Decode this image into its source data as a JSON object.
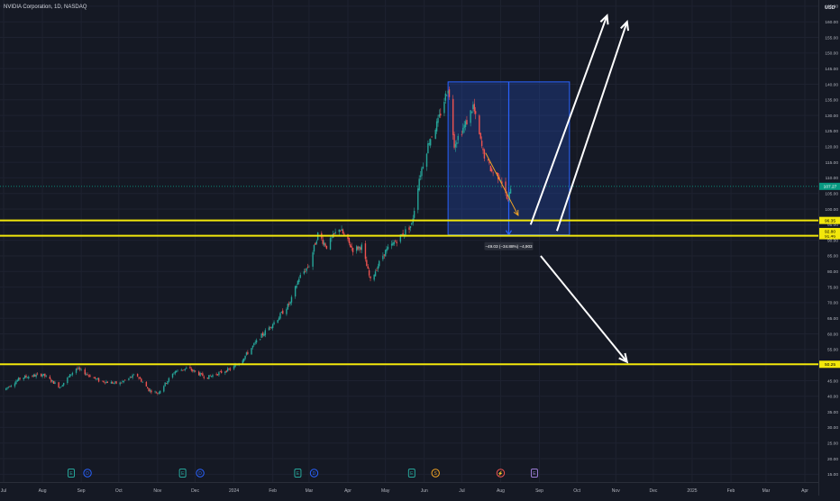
{
  "header": {
    "symbol_title": "NVIDIA Corporation, 1D, NASDAQ",
    "currency": "USD"
  },
  "colors": {
    "background": "#151924",
    "grid": "#1e2230",
    "up": "#26a69a",
    "down": "#ef5350",
    "level_line": "#f2e70b",
    "measure_box": "#2962ff",
    "arrow": "#ffffff",
    "orange_arrow": "#f5a623",
    "current_price_bg": "#089981"
  },
  "chart_data": {
    "type": "candlestick",
    "x_tick_labels": [
      "Jul",
      "Aug",
      "Sep",
      "Oct",
      "Nov",
      "Dec",
      "2024",
      "Feb",
      "Mar",
      "Apr",
      "May",
      "Jun",
      "Jul",
      "Aug",
      "Sep",
      "Oct",
      "Nov",
      "Dec",
      "2025",
      "Feb",
      "Mar",
      "Apr"
    ],
    "y_tick_labels": [
      "165.00",
      "160.00",
      "155.00",
      "150.00",
      "145.00",
      "140.00",
      "135.00",
      "130.00",
      "125.00",
      "120.00",
      "115.00",
      "110.00",
      "105.00",
      "100.00",
      "95.00",
      "90.00",
      "85.00",
      "80.00",
      "75.00",
      "70.00",
      "65.00",
      "60.00",
      "55.00",
      "50.00",
      "45.00",
      "40.00",
      "35.00",
      "30.00",
      "25.00",
      "20.00",
      "15.00"
    ],
    "y_tick_values": [
      165,
      160,
      155,
      150,
      145,
      140,
      135,
      130,
      125,
      120,
      115,
      110,
      105,
      100,
      95,
      90,
      85,
      80,
      75,
      70,
      65,
      60,
      55,
      50,
      45,
      40,
      35,
      30,
      25,
      20,
      15
    ],
    "ylim": [
      12.5,
      167
    ],
    "price_path": [
      {
        "date": "2023-07-01",
        "price": 42
      },
      {
        "date": "2023-07-15",
        "price": 46
      },
      {
        "date": "2023-08-01",
        "price": 47
      },
      {
        "date": "2023-08-15",
        "price": 43
      },
      {
        "date": "2023-08-28",
        "price": 49
      },
      {
        "date": "2023-09-15",
        "price": 45
      },
      {
        "date": "2023-10-01",
        "price": 44
      },
      {
        "date": "2023-10-15",
        "price": 47
      },
      {
        "date": "2023-10-25",
        "price": 42
      },
      {
        "date": "2023-11-01",
        "price": 41
      },
      {
        "date": "2023-11-15",
        "price": 48
      },
      {
        "date": "2023-11-25",
        "price": 49
      },
      {
        "date": "2023-12-10",
        "price": 46
      },
      {
        "date": "2023-12-31",
        "price": 49
      },
      {
        "date": "2024-01-08",
        "price": 52
      },
      {
        "date": "2024-01-22",
        "price": 59
      },
      {
        "date": "2024-02-05",
        "price": 65
      },
      {
        "date": "2024-02-15",
        "price": 70
      },
      {
        "date": "2024-02-22",
        "price": 78
      },
      {
        "date": "2024-03-01",
        "price": 82
      },
      {
        "date": "2024-03-08",
        "price": 92
      },
      {
        "date": "2024-03-15",
        "price": 88
      },
      {
        "date": "2024-03-25",
        "price": 94
      },
      {
        "date": "2024-04-05",
        "price": 87
      },
      {
        "date": "2024-04-12",
        "price": 88
      },
      {
        "date": "2024-04-19",
        "price": 77
      },
      {
        "date": "2024-04-30",
        "price": 86
      },
      {
        "date": "2024-05-10",
        "price": 90
      },
      {
        "date": "2024-05-22",
        "price": 95
      },
      {
        "date": "2024-05-28",
        "price": 110
      },
      {
        "date": "2024-06-05",
        "price": 122
      },
      {
        "date": "2024-06-12",
        "price": 128
      },
      {
        "date": "2024-06-20",
        "price": 139
      },
      {
        "date": "2024-06-25",
        "price": 121
      },
      {
        "date": "2024-07-05",
        "price": 128
      },
      {
        "date": "2024-07-10",
        "price": 133
      },
      {
        "date": "2024-07-18",
        "price": 118
      },
      {
        "date": "2024-07-25",
        "price": 112
      },
      {
        "date": "2024-08-01",
        "price": 110
      },
      {
        "date": "2024-08-07",
        "price": 102
      },
      {
        "date": "2024-08-09",
        "price": 107.27
      }
    ],
    "level_lines": [
      {
        "price": 96.35,
        "label": "96.35"
      },
      {
        "price": 91.46,
        "label": "91.46"
      },
      {
        "price": 50.25,
        "label": "50.25"
      }
    ],
    "current_price": {
      "price": 107.27,
      "label": "107.27"
    },
    "hidden_price": {
      "price": 92.8,
      "label": "92.80"
    },
    "measure": {
      "top_price": 140.76,
      "bottom_price": 91.73,
      "start_date": "2024-06-20",
      "end_date": "2024-09-25",
      "label": "−49.03 (−34.88%) −4,903"
    },
    "event_markers": [
      {
        "date": "2023-08-24",
        "kind": "earnings",
        "label": "E"
      },
      {
        "date": "2023-09-06",
        "kind": "dividend",
        "label": "D"
      },
      {
        "date": "2023-11-21",
        "kind": "earnings",
        "label": "E"
      },
      {
        "date": "2023-12-05",
        "kind": "dividend",
        "label": "D"
      },
      {
        "date": "2024-02-21",
        "kind": "earnings",
        "label": "E"
      },
      {
        "date": "2024-03-05",
        "kind": "dividend",
        "label": "D"
      },
      {
        "date": "2024-05-22",
        "kind": "earnings",
        "label": "E"
      },
      {
        "date": "2024-06-10",
        "kind": "split",
        "label": "S"
      },
      {
        "date": "2024-08-01",
        "kind": "flash",
        "label": "⚡"
      },
      {
        "date": "2024-08-28",
        "kind": "earnings-upcoming",
        "label": "E"
      }
    ],
    "arrows": [
      {
        "from": {
          "date": "2024-09-15",
          "price": 93
        },
        "to": {
          "date": "2024-11-10",
          "price": 160
        }
      },
      {
        "from": {
          "date": "2024-08-25",
          "price": 95
        },
        "to": {
          "date": "2024-10-25",
          "price": 162
        }
      },
      {
        "from": {
          "date": "2024-09-02",
          "price": 85
        },
        "to": {
          "date": "2024-11-10",
          "price": 51
        }
      }
    ],
    "orange_arrow": {
      "from": {
        "date": "2024-07-20",
        "price": 118
      },
      "to": {
        "date": "2024-08-15",
        "price": 98
      }
    }
  }
}
